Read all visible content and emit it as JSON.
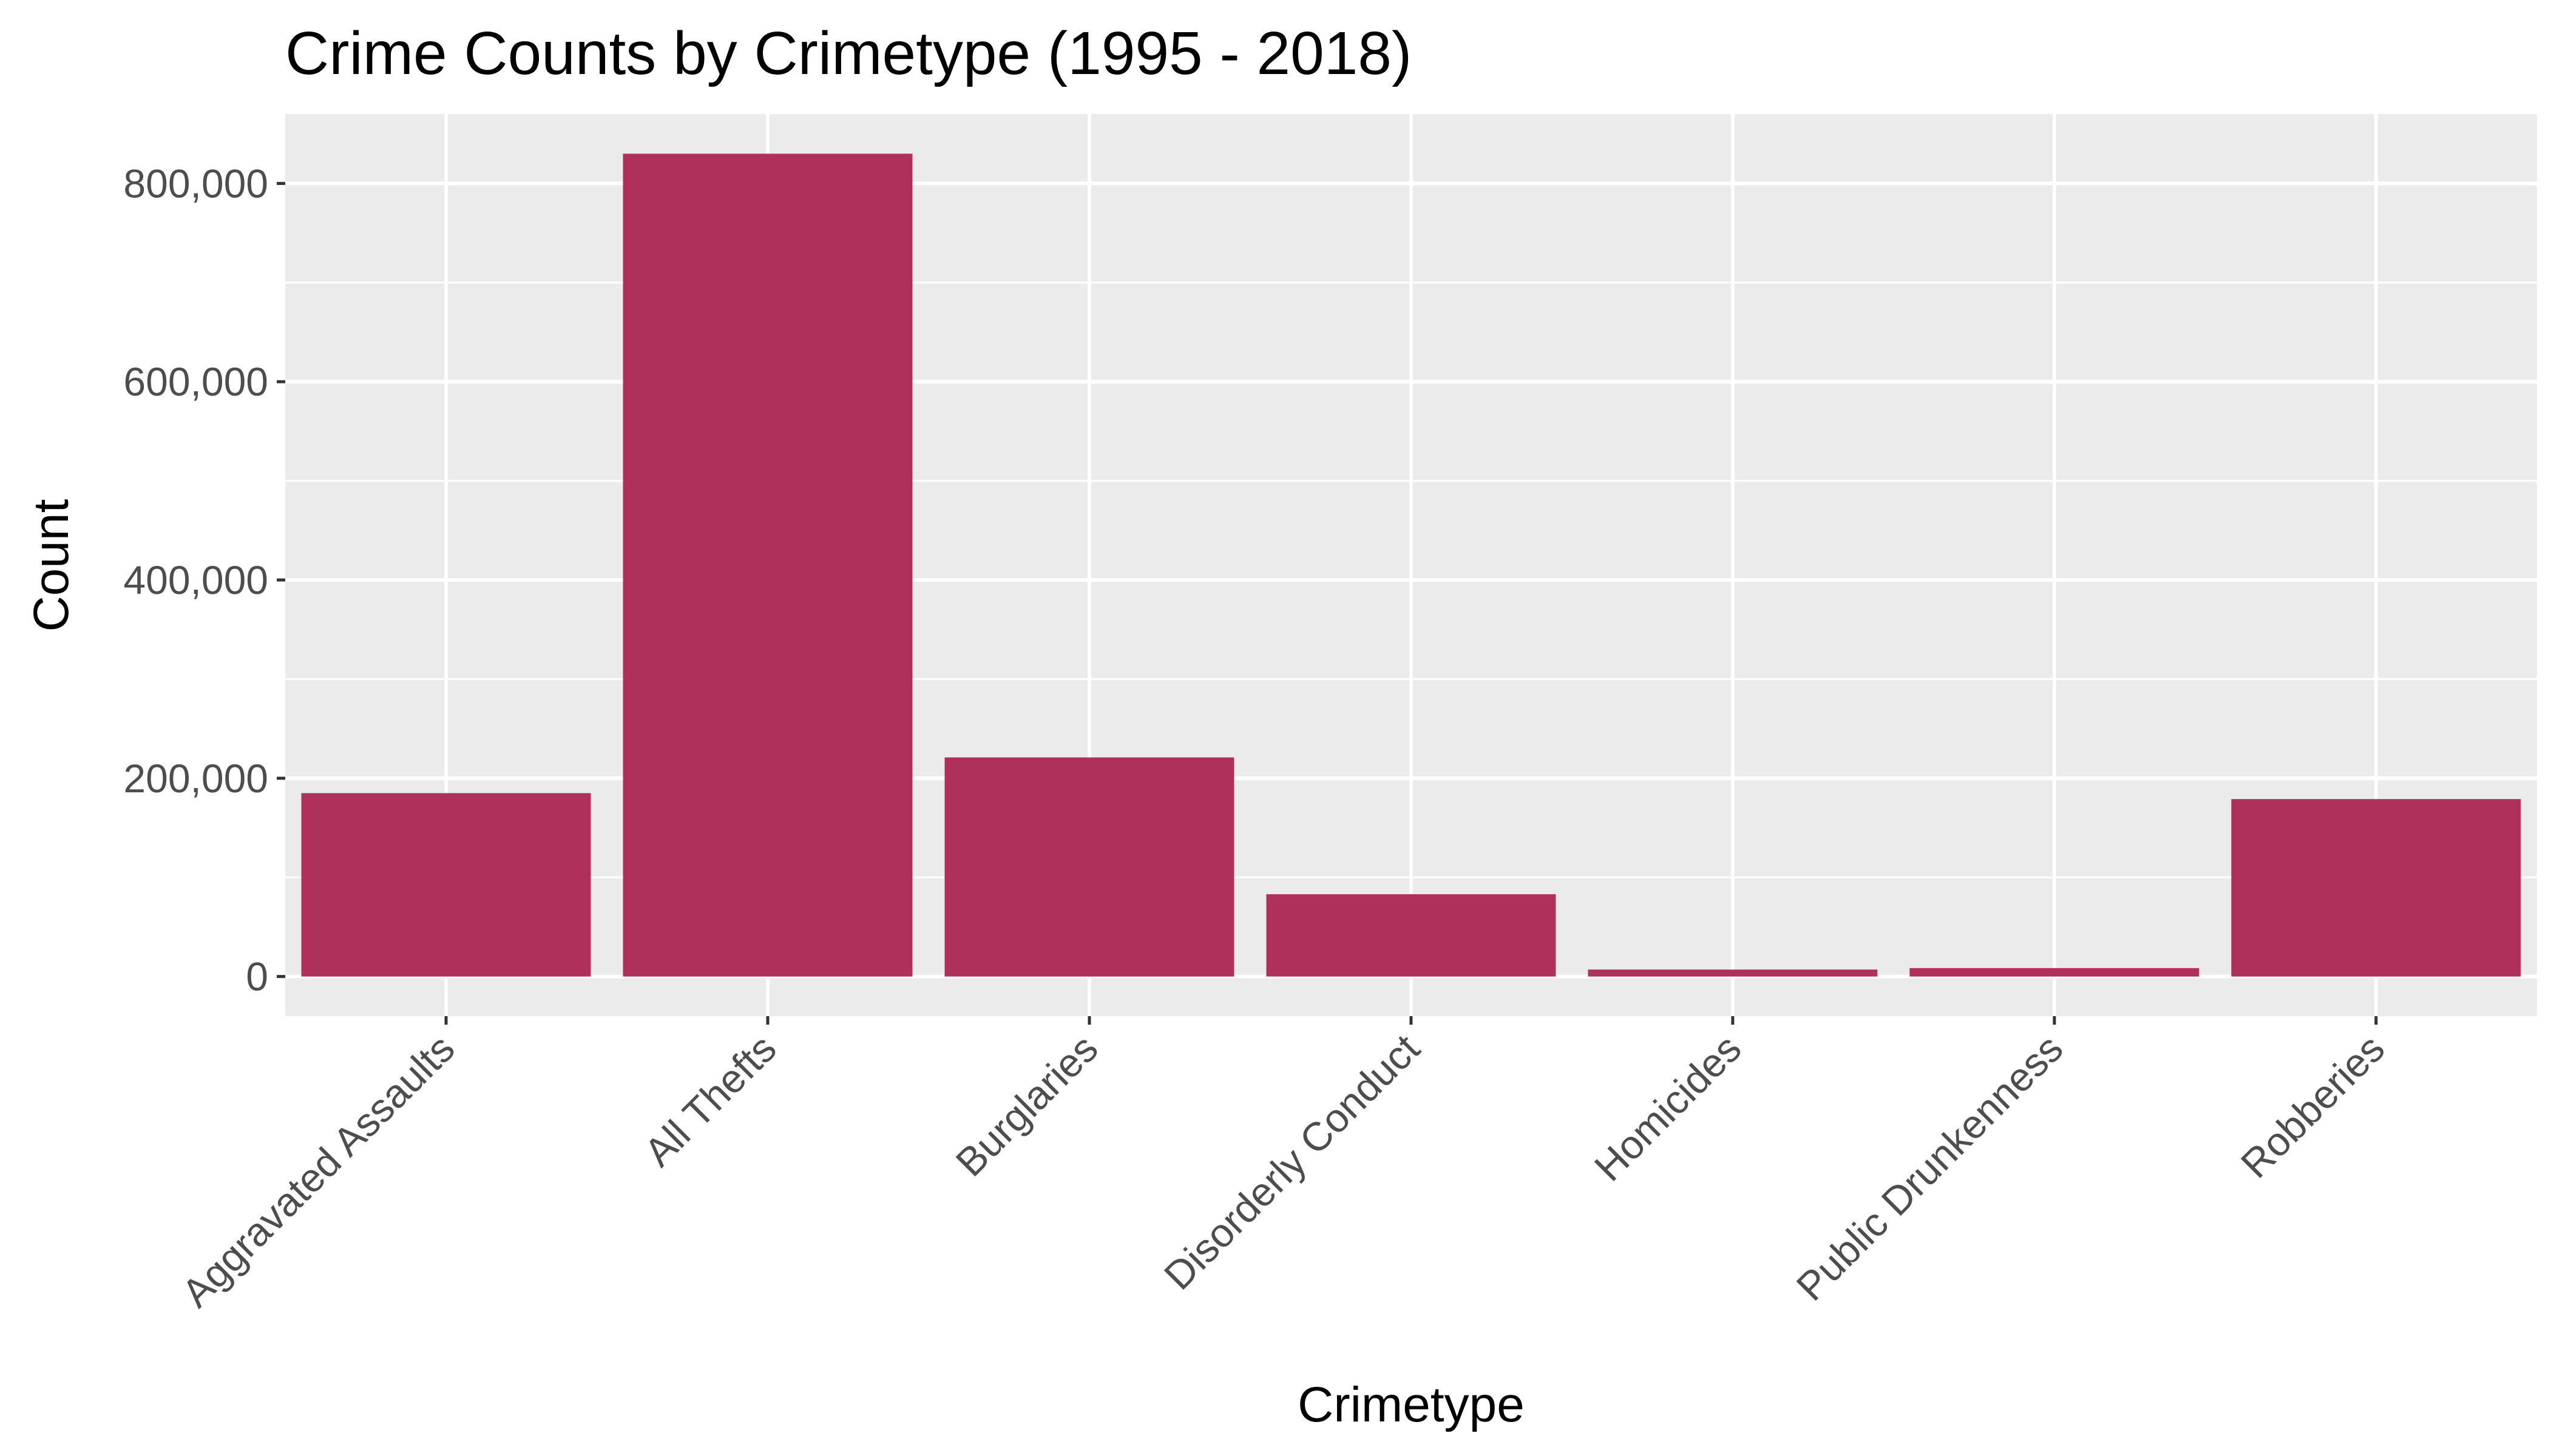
{
  "chart_data": {
    "type": "bar",
    "title": "Crime Counts by Crimetype (1995 - 2018)",
    "xlabel": "Crimetype",
    "ylabel": "Count",
    "categories": [
      "Aggravated Assaults",
      "All Thefts",
      "Burglaries",
      "Disorderly Conduct",
      "Homicides",
      "Public Drunkenness",
      "Robberies"
    ],
    "values": [
      185000,
      830000,
      221000,
      83000,
      7000,
      8500,
      179000
    ],
    "ylim": [
      -40000,
      870000
    ],
    "yticks": [
      0,
      200000,
      400000,
      600000,
      800000
    ],
    "ytick_labels": [
      "0",
      "200,000",
      "400,000",
      "600,000",
      "800,000"
    ],
    "grid": true,
    "legend": "none",
    "colors": {
      "bar": "#b0305c",
      "panel": "#ebebeb",
      "grid": "#ffffff",
      "tick_text": "#4d4d4d"
    }
  }
}
